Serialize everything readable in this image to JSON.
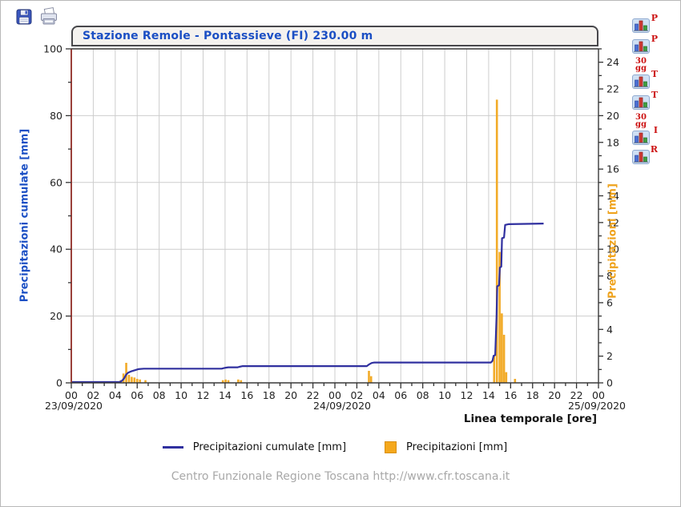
{
  "header": {
    "title": "Stazione Remole - Pontassieve (FI) 230.00 m",
    "title_color": "#1b4fc4"
  },
  "toolbar": {
    "icons": [
      "save-icon",
      "print-icon"
    ]
  },
  "sidebar_buttons": [
    {
      "label": "P",
      "sub": ""
    },
    {
      "label": "P",
      "sub": "30 gg"
    },
    {
      "label": "T",
      "sub": ""
    },
    {
      "label": "T",
      "sub": "30 gg"
    },
    {
      "label": "I",
      "sub": ""
    },
    {
      "label": "R",
      "sub": ""
    }
  ],
  "icon_colors": {
    "tile_bg": "#cfe0f4",
    "tile_border": "#8fa9cf",
    "bar_blue": "#4a6fd4",
    "bar_red": "#d03a34",
    "bar_green": "#3f9e3f"
  },
  "left_axis": {
    "label": "Precipitazioni cumulate [mm]",
    "color": "#1b4fc4",
    "min": 0,
    "max": 100,
    "major": 20,
    "minor": 10
  },
  "right_axis": {
    "label": "Precipitazioni [mm]",
    "color": "#efa31d",
    "min": 0,
    "max": 25,
    "major": 2,
    "minor": 1
  },
  "x_axis": {
    "label": "Linea temporale [ore]",
    "hours_total": 48,
    "hour_labels": [
      "00",
      "02",
      "04",
      "06",
      "08",
      "10",
      "12",
      "14",
      "16",
      "18",
      "20",
      "22",
      "00",
      "02",
      "04",
      "06",
      "08",
      "10",
      "12",
      "14",
      "16",
      "18",
      "20",
      "22",
      "00"
    ],
    "dates": [
      "23/09/2020",
      "24/09/2020",
      "25/09/2020"
    ]
  },
  "legend": [
    {
      "type": "line",
      "label": "Precipitazioni cumulate [mm]",
      "color": "#30309f"
    },
    {
      "type": "box",
      "label": "Precipitazioni [mm]",
      "color": "#f5a81c",
      "border": "#d98f10"
    }
  ],
  "footer": {
    "text": "Centro Funzionale Regione Toscana http://www.cfr.toscana.it"
  },
  "chart_data": {
    "type": "mixed",
    "title": "Stazione Remole - Pontassieve (FI) 230.00 m",
    "x_unit": "hours since 23/09/2020 00:00",
    "x_range": [
      0,
      48
    ],
    "grid": true,
    "axis_colors": {
      "left_spine": "#9a403a",
      "other_spines": "#3a3a3a",
      "gridline": "#cdcdcd"
    },
    "series": [
      {
        "name": "Precipitazioni cumulate [mm]",
        "type": "line",
        "axis": "left",
        "color": "#30309f",
        "points": [
          [
            0,
            0.25
          ],
          [
            4.4,
            0.25
          ],
          [
            4.6,
            0.6
          ],
          [
            4.8,
            1.3
          ],
          [
            5.0,
            2.5
          ],
          [
            5.2,
            3.1
          ],
          [
            5.5,
            3.5
          ],
          [
            5.8,
            3.8
          ],
          [
            6.1,
            4.1
          ],
          [
            6.6,
            4.25
          ],
          [
            13.7,
            4.25
          ],
          [
            13.85,
            4.4
          ],
          [
            14.1,
            4.55
          ],
          [
            14.3,
            4.65
          ],
          [
            15.15,
            4.65
          ],
          [
            15.3,
            4.8
          ],
          [
            15.6,
            5.0
          ],
          [
            26.9,
            5.0
          ],
          [
            27.1,
            5.5
          ],
          [
            27.35,
            5.95
          ],
          [
            27.6,
            6.1
          ],
          [
            38.2,
            6.1
          ],
          [
            38.35,
            6.6
          ],
          [
            38.45,
            8.1
          ],
          [
            38.6,
            8.3
          ],
          [
            38.72,
            20.0
          ],
          [
            38.78,
            28.9
          ],
          [
            38.95,
            29.2
          ],
          [
            39.02,
            34.5
          ],
          [
            39.15,
            34.8
          ],
          [
            39.22,
            43.3
          ],
          [
            39.4,
            43.5
          ],
          [
            39.5,
            47.3
          ],
          [
            39.8,
            47.5
          ],
          [
            43,
            47.7
          ]
        ]
      },
      {
        "name": "Precipitazioni [mm]",
        "type": "bar",
        "axis": "right",
        "color": "#f2ab28",
        "points": [
          [
            4.5,
            0.2
          ],
          [
            4.75,
            0.7
          ],
          [
            5.0,
            1.5
          ],
          [
            5.25,
            0.6
          ],
          [
            5.5,
            0.45
          ],
          [
            5.75,
            0.4
          ],
          [
            6.0,
            0.3
          ],
          [
            6.25,
            0.25
          ],
          [
            6.75,
            0.2
          ],
          [
            13.8,
            0.2
          ],
          [
            14.05,
            0.25
          ],
          [
            14.3,
            0.2
          ],
          [
            15.2,
            0.25
          ],
          [
            15.45,
            0.2
          ],
          [
            27.1,
            0.9
          ],
          [
            27.3,
            0.5
          ],
          [
            38.5,
            2.0
          ],
          [
            38.75,
            21.2
          ],
          [
            39.0,
            9.8
          ],
          [
            39.2,
            5.2
          ],
          [
            39.4,
            3.6
          ],
          [
            39.6,
            0.8
          ],
          [
            40.4,
            0.3
          ]
        ]
      }
    ]
  }
}
